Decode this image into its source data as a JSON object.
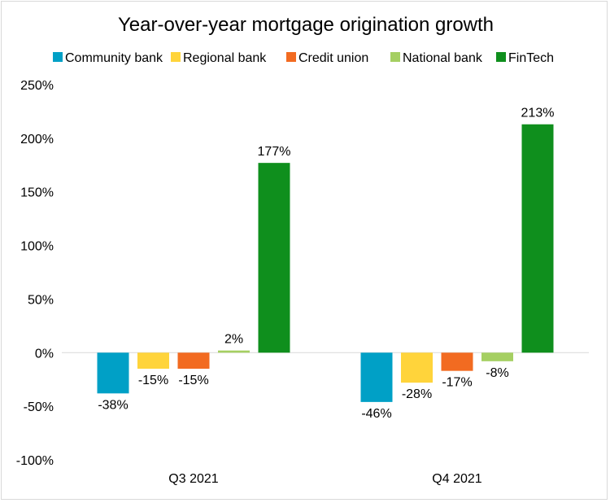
{
  "chart_data": {
    "type": "bar",
    "title": "Year-over-year mortgage origination growth",
    "xlabel": "",
    "ylabel": "",
    "categories": [
      "Q3 2021",
      "Q4 2021"
    ],
    "series": [
      {
        "name": "Community bank",
        "color": "#00a0c6",
        "values": [
          -38,
          -46
        ],
        "labels": [
          "-38%",
          "-46%"
        ]
      },
      {
        "name": "Regional bank",
        "color": "#ffd43b",
        "values": [
          -15,
          -28
        ],
        "labels": [
          "-15%",
          "-28%"
        ]
      },
      {
        "name": "Credit union",
        "color": "#f26b21",
        "values": [
          -15,
          -17
        ],
        "labels": [
          "-15%",
          "-17%"
        ]
      },
      {
        "name": "National bank",
        "color": "#a5cf62",
        "values": [
          2,
          -8
        ],
        "labels": [
          "2%",
          "-8%"
        ]
      },
      {
        "name": "FinTech",
        "color": "#0f8f1d",
        "values": [
          177,
          213
        ],
        "labels": [
          "177%",
          "213%"
        ]
      }
    ],
    "ylim": [
      -100,
      250
    ],
    "yticks": [
      250,
      200,
      150,
      100,
      50,
      0,
      -50,
      -100
    ],
    "ytick_labels": [
      "250%",
      "200%",
      "150%",
      "100%",
      "50%",
      "0%",
      "-50%",
      "-100%"
    ],
    "grid": false,
    "legend_position": "top"
  }
}
